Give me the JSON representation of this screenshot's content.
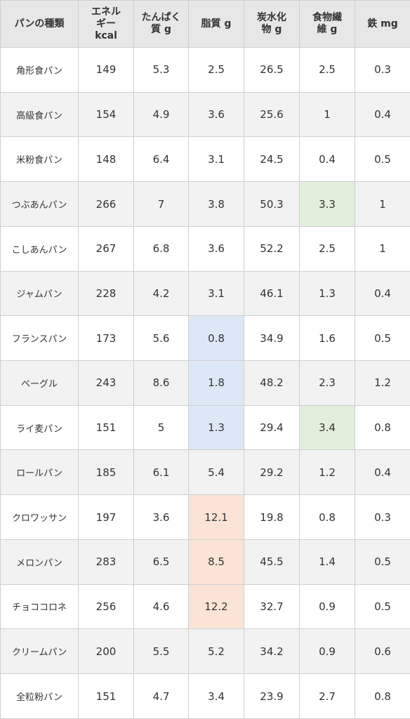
{
  "table": {
    "header": [
      [
        "パンの種類"
      ],
      [
        "エネル",
        "ギー",
        "kcal"
      ],
      [
        "たんぱく",
        "質 g"
      ],
      [
        "脂質 g"
      ],
      [
        "炭水化",
        "物 g"
      ],
      [
        "食物繊",
        "維 g"
      ],
      [
        "鉄 mg"
      ]
    ],
    "rows": [
      [
        "角形食パン",
        149,
        5.3,
        2.5,
        26.5,
        2.5,
        0.3
      ],
      [
        "高級食パン",
        154,
        4.9,
        3.6,
        25.6,
        1,
        0.4
      ],
      [
        "米粉食パン",
        148,
        6.4,
        3.1,
        24.5,
        0.4,
        0.5
      ],
      [
        "つぶあんパン",
        266,
        7,
        3.8,
        50.3,
        3.3,
        1
      ],
      [
        "こしあんパン",
        267,
        6.8,
        3.6,
        52.2,
        2.5,
        1
      ],
      [
        "ジャムパン",
        228,
        4.2,
        3.1,
        46.1,
        1.3,
        0.4
      ],
      [
        "フランスパン",
        173,
        5.6,
        0.8,
        34.9,
        1.6,
        0.5
      ],
      [
        "ベーグル",
        243,
        8.6,
        1.8,
        48.2,
        2.3,
        1.2
      ],
      [
        "ライ麦パン",
        151,
        5,
        1.3,
        29.4,
        3.4,
        0.8
      ],
      [
        "ロールパン",
        185,
        6.1,
        5.4,
        29.2,
        1.2,
        0.4
      ],
      [
        "クロワッサン",
        197,
        3.6,
        12.1,
        19.8,
        0.8,
        0.3
      ],
      [
        "メロンパン",
        283,
        6.5,
        8.5,
        45.5,
        1.4,
        0.5
      ],
      [
        "チョココロネ",
        256,
        4.6,
        12.2,
        32.7,
        0.9,
        0.5
      ],
      [
        "クリームパン",
        200,
        5.5,
        5.2,
        34.2,
        0.9,
        0.6
      ],
      [
        "全粒粉パン",
        151,
        4.7,
        3.4,
        23.9,
        2.7,
        0.8
      ]
    ],
    "cell_colors": [
      {
        "row": 3,
        "col": 5,
        "color": "#e2efda"
      },
      {
        "row": 8,
        "col": 5,
        "color": "#e2efda"
      },
      {
        "row": 6,
        "col": 3,
        "color": "#dde8f6"
      },
      {
        "row": 7,
        "col": 3,
        "color": "#dde8f6"
      },
      {
        "row": 8,
        "col": 3,
        "color": "#dde8f6"
      },
      {
        "row": 10,
        "col": 3,
        "color": "#fbe4d5"
      },
      {
        "row": 11,
        "col": 3,
        "color": "#fbe4d5"
      },
      {
        "row": 12,
        "col": 3,
        "color": "#fbe4d5"
      }
    ]
  }
}
